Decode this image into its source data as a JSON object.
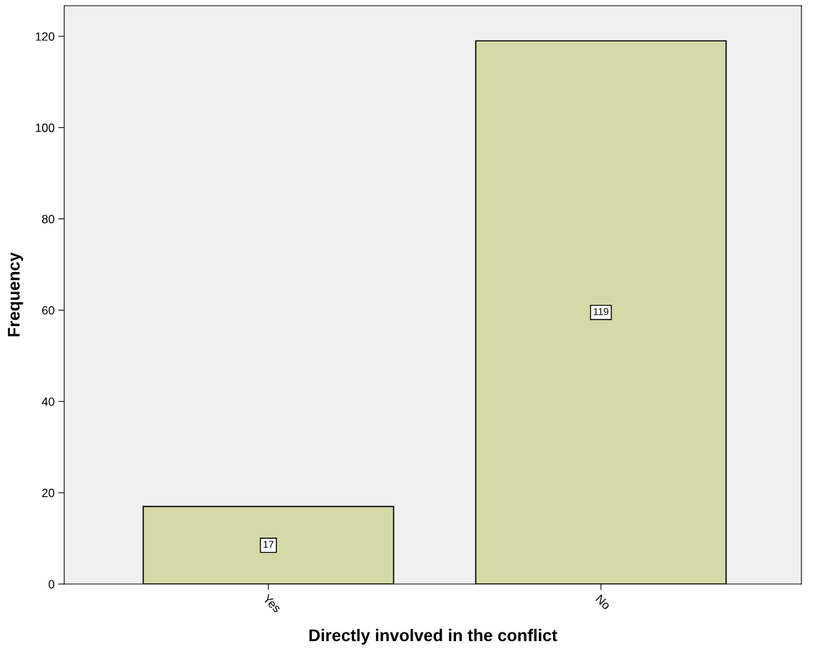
{
  "chart_data": {
    "type": "bar",
    "xlabel": "Directly involved in the conflict",
    "ylabel": "Frequency",
    "categories": [
      "Yes",
      "No"
    ],
    "values": [
      17,
      119
    ],
    "color": "#d5d9a8",
    "ylim": [
      0,
      126.7
    ],
    "yticks": [
      0,
      20,
      40,
      60,
      80,
      100,
      120
    ],
    "data_labels": true,
    "grid": false
  }
}
